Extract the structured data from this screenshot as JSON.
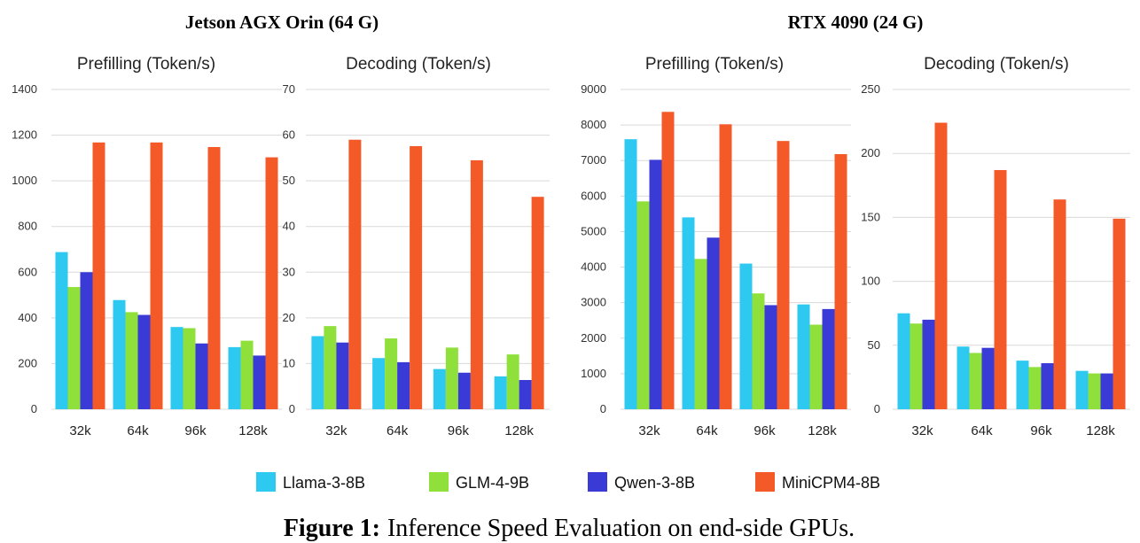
{
  "groups": [
    {
      "title": "Jetson AGX Orin (64 G)"
    },
    {
      "title": "RTX 4090 (24 G)"
    }
  ],
  "legend": [
    {
      "name": "Llama-3-8B",
      "color": "#2ec9f0"
    },
    {
      "name": "GLM-4-9B",
      "color": "#8fe03a"
    },
    {
      "name": "Qwen-3-8B",
      "color": "#3a3ad6"
    },
    {
      "name": "MiniCPM4-8B",
      "color": "#f45a28"
    }
  ],
  "caption": {
    "label": "Figure 1:",
    "text": "Inference Speed Evaluation on end-side GPUs."
  },
  "chart_data": [
    {
      "type": "bar",
      "group": "Jetson AGX Orin (64 G)",
      "title": "Prefilling (Token/s)",
      "categories": [
        "32k",
        "64k",
        "96k",
        "128k"
      ],
      "ylim": [
        0,
        1400
      ],
      "yticks": [
        0,
        200,
        400,
        600,
        800,
        1000,
        1200,
        1400
      ],
      "grid": true,
      "series": [
        {
          "name": "Llama-3-8B",
          "values": [
            688,
            478,
            360,
            272
          ]
        },
        {
          "name": "GLM-4-9B",
          "values": [
            535,
            425,
            355,
            300
          ]
        },
        {
          "name": "Qwen-3-8B",
          "values": [
            600,
            413,
            288,
            235
          ]
        },
        {
          "name": "MiniCPM4-8B",
          "values": [
            1168,
            1168,
            1148,
            1103
          ]
        }
      ]
    },
    {
      "type": "bar",
      "group": "Jetson AGX Orin (64 G)",
      "title": "Decoding (Token/s)",
      "categories": [
        "32k",
        "64k",
        "96k",
        "128k"
      ],
      "ylim": [
        0,
        70
      ],
      "yticks": [
        0,
        10,
        20,
        30,
        40,
        50,
        60,
        70
      ],
      "grid": true,
      "series": [
        {
          "name": "Llama-3-8B",
          "values": [
            16,
            11.2,
            8.8,
            7.2
          ]
        },
        {
          "name": "GLM-4-9B",
          "values": [
            18.2,
            15.5,
            13.5,
            12
          ]
        },
        {
          "name": "Qwen-3-8B",
          "values": [
            14.6,
            10.3,
            8,
            6.4
          ]
        },
        {
          "name": "MiniCPM4-8B",
          "values": [
            59,
            57.6,
            54.5,
            46.5
          ]
        }
      ]
    },
    {
      "type": "bar",
      "group": "RTX 4090 (24 G)",
      "title": "Prefilling (Token/s)",
      "categories": [
        "32k",
        "64k",
        "96k",
        "128k"
      ],
      "ylim": [
        0,
        9000
      ],
      "yticks": [
        0,
        1000,
        2000,
        3000,
        4000,
        5000,
        6000,
        7000,
        8000,
        9000
      ],
      "grid": true,
      "series": [
        {
          "name": "Llama-3-8B",
          "values": [
            7600,
            5400,
            4100,
            2950
          ]
        },
        {
          "name": "GLM-4-9B",
          "values": [
            5850,
            4230,
            3260,
            2380
          ]
        },
        {
          "name": "Qwen-3-8B",
          "values": [
            7020,
            4830,
            2930,
            2820
          ]
        },
        {
          "name": "MiniCPM4-8B",
          "values": [
            8370,
            8020,
            7550,
            7180
          ]
        }
      ]
    },
    {
      "type": "bar",
      "group": "RTX 4090 (24 G)",
      "title": "Decoding (Token/s)",
      "categories": [
        "32k",
        "64k",
        "96k",
        "128k"
      ],
      "ylim": [
        0,
        250
      ],
      "yticks": [
        0,
        50,
        100,
        150,
        200,
        250
      ],
      "grid": true,
      "series": [
        {
          "name": "Llama-3-8B",
          "values": [
            75,
            49,
            38,
            30
          ]
        },
        {
          "name": "GLM-4-9B",
          "values": [
            67,
            44,
            33,
            28
          ]
        },
        {
          "name": "Qwen-3-8B",
          "values": [
            70,
            48,
            36,
            28
          ]
        },
        {
          "name": "MiniCPM4-8B",
          "values": [
            224,
            187,
            164,
            149
          ]
        }
      ]
    }
  ]
}
